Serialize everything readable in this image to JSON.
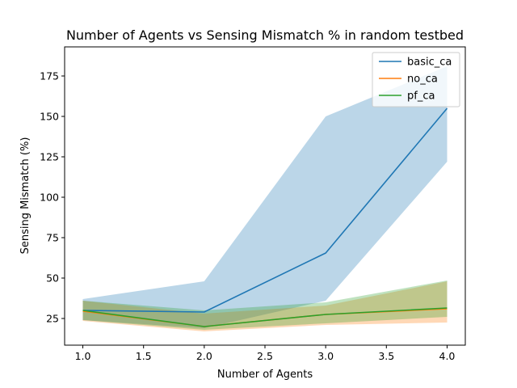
{
  "chart_data": {
    "type": "line",
    "title": "Number of Agents vs Sensing Mismatch % in random testbed",
    "xlabel": "Number of Agents",
    "ylabel": "Sensing Mismatch (%)",
    "xlim": [
      0.85,
      4.15
    ],
    "ylim": [
      8.5,
      193
    ],
    "xticks": [
      1.0,
      1.5,
      2.0,
      2.5,
      3.0,
      3.5,
      4.0
    ],
    "xtick_labels": [
      "1.0",
      "1.5",
      "2.0",
      "2.5",
      "3.0",
      "3.5",
      "4.0"
    ],
    "yticks": [
      25,
      50,
      75,
      100,
      125,
      150,
      175
    ],
    "ytick_labels": [
      "25",
      "50",
      "75",
      "100",
      "125",
      "150",
      "175"
    ],
    "grid": false,
    "legend_position": "top-right",
    "x": [
      1,
      2,
      3,
      4
    ],
    "series": [
      {
        "name": "basic_ca",
        "color": "#1f77b4",
        "values": [
          30,
          29,
          65.5,
          155
        ],
        "band_lower": [
          24,
          19,
          36,
          122
        ],
        "band_upper": [
          37,
          48,
          150,
          181
        ]
      },
      {
        "name": "no_ca",
        "color": "#ff7f0e",
        "values": [
          29.5,
          20,
          27.5,
          31
        ],
        "band_lower": [
          23.5,
          17,
          21,
          22.5
        ],
        "band_upper": [
          36,
          28,
          33,
          48
        ]
      },
      {
        "name": "pf_ca",
        "color": "#2ca02c",
        "values": [
          30,
          20,
          27.5,
          31.5
        ],
        "band_lower": [
          24,
          18,
          22,
          26
        ],
        "band_upper": [
          36,
          30,
          35,
          48.5
        ]
      }
    ]
  }
}
